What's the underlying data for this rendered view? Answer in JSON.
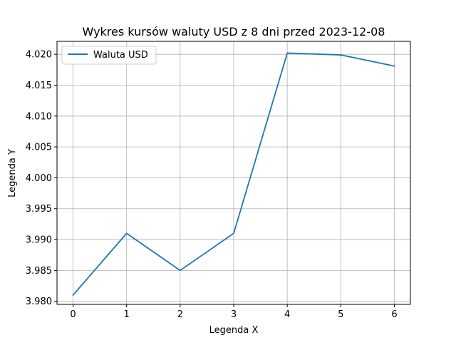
{
  "chart_data": {
    "type": "line",
    "title": "Wykres kursów waluty USD z 8 dni przed 2023-12-08",
    "xlabel": "Legenda X",
    "ylabel": "Legenda Y",
    "x": [
      0,
      1,
      2,
      3,
      4,
      5,
      6
    ],
    "series": [
      {
        "name": "Waluta USD",
        "color": "#1f77b4",
        "values": [
          3.981,
          3.991,
          3.985,
          3.991,
          4.0202,
          4.0199,
          4.0181
        ]
      }
    ],
    "xlim": [
      -0.3,
      6.3
    ],
    "ylim": [
      3.9795,
      4.0221
    ],
    "x_ticks": [
      0,
      1,
      2,
      3,
      4,
      5,
      6
    ],
    "x_tick_labels": [
      "0",
      "1",
      "2",
      "3",
      "4",
      "5",
      "6"
    ],
    "y_ticks": [
      3.98,
      3.985,
      3.99,
      3.995,
      4.0,
      4.005,
      4.01,
      4.015,
      4.02
    ],
    "y_tick_labels": [
      "3.980",
      "3.985",
      "3.990",
      "3.995",
      "4.000",
      "4.005",
      "4.010",
      "4.015",
      "4.020"
    ],
    "grid": true,
    "legend_position": "top-left"
  }
}
